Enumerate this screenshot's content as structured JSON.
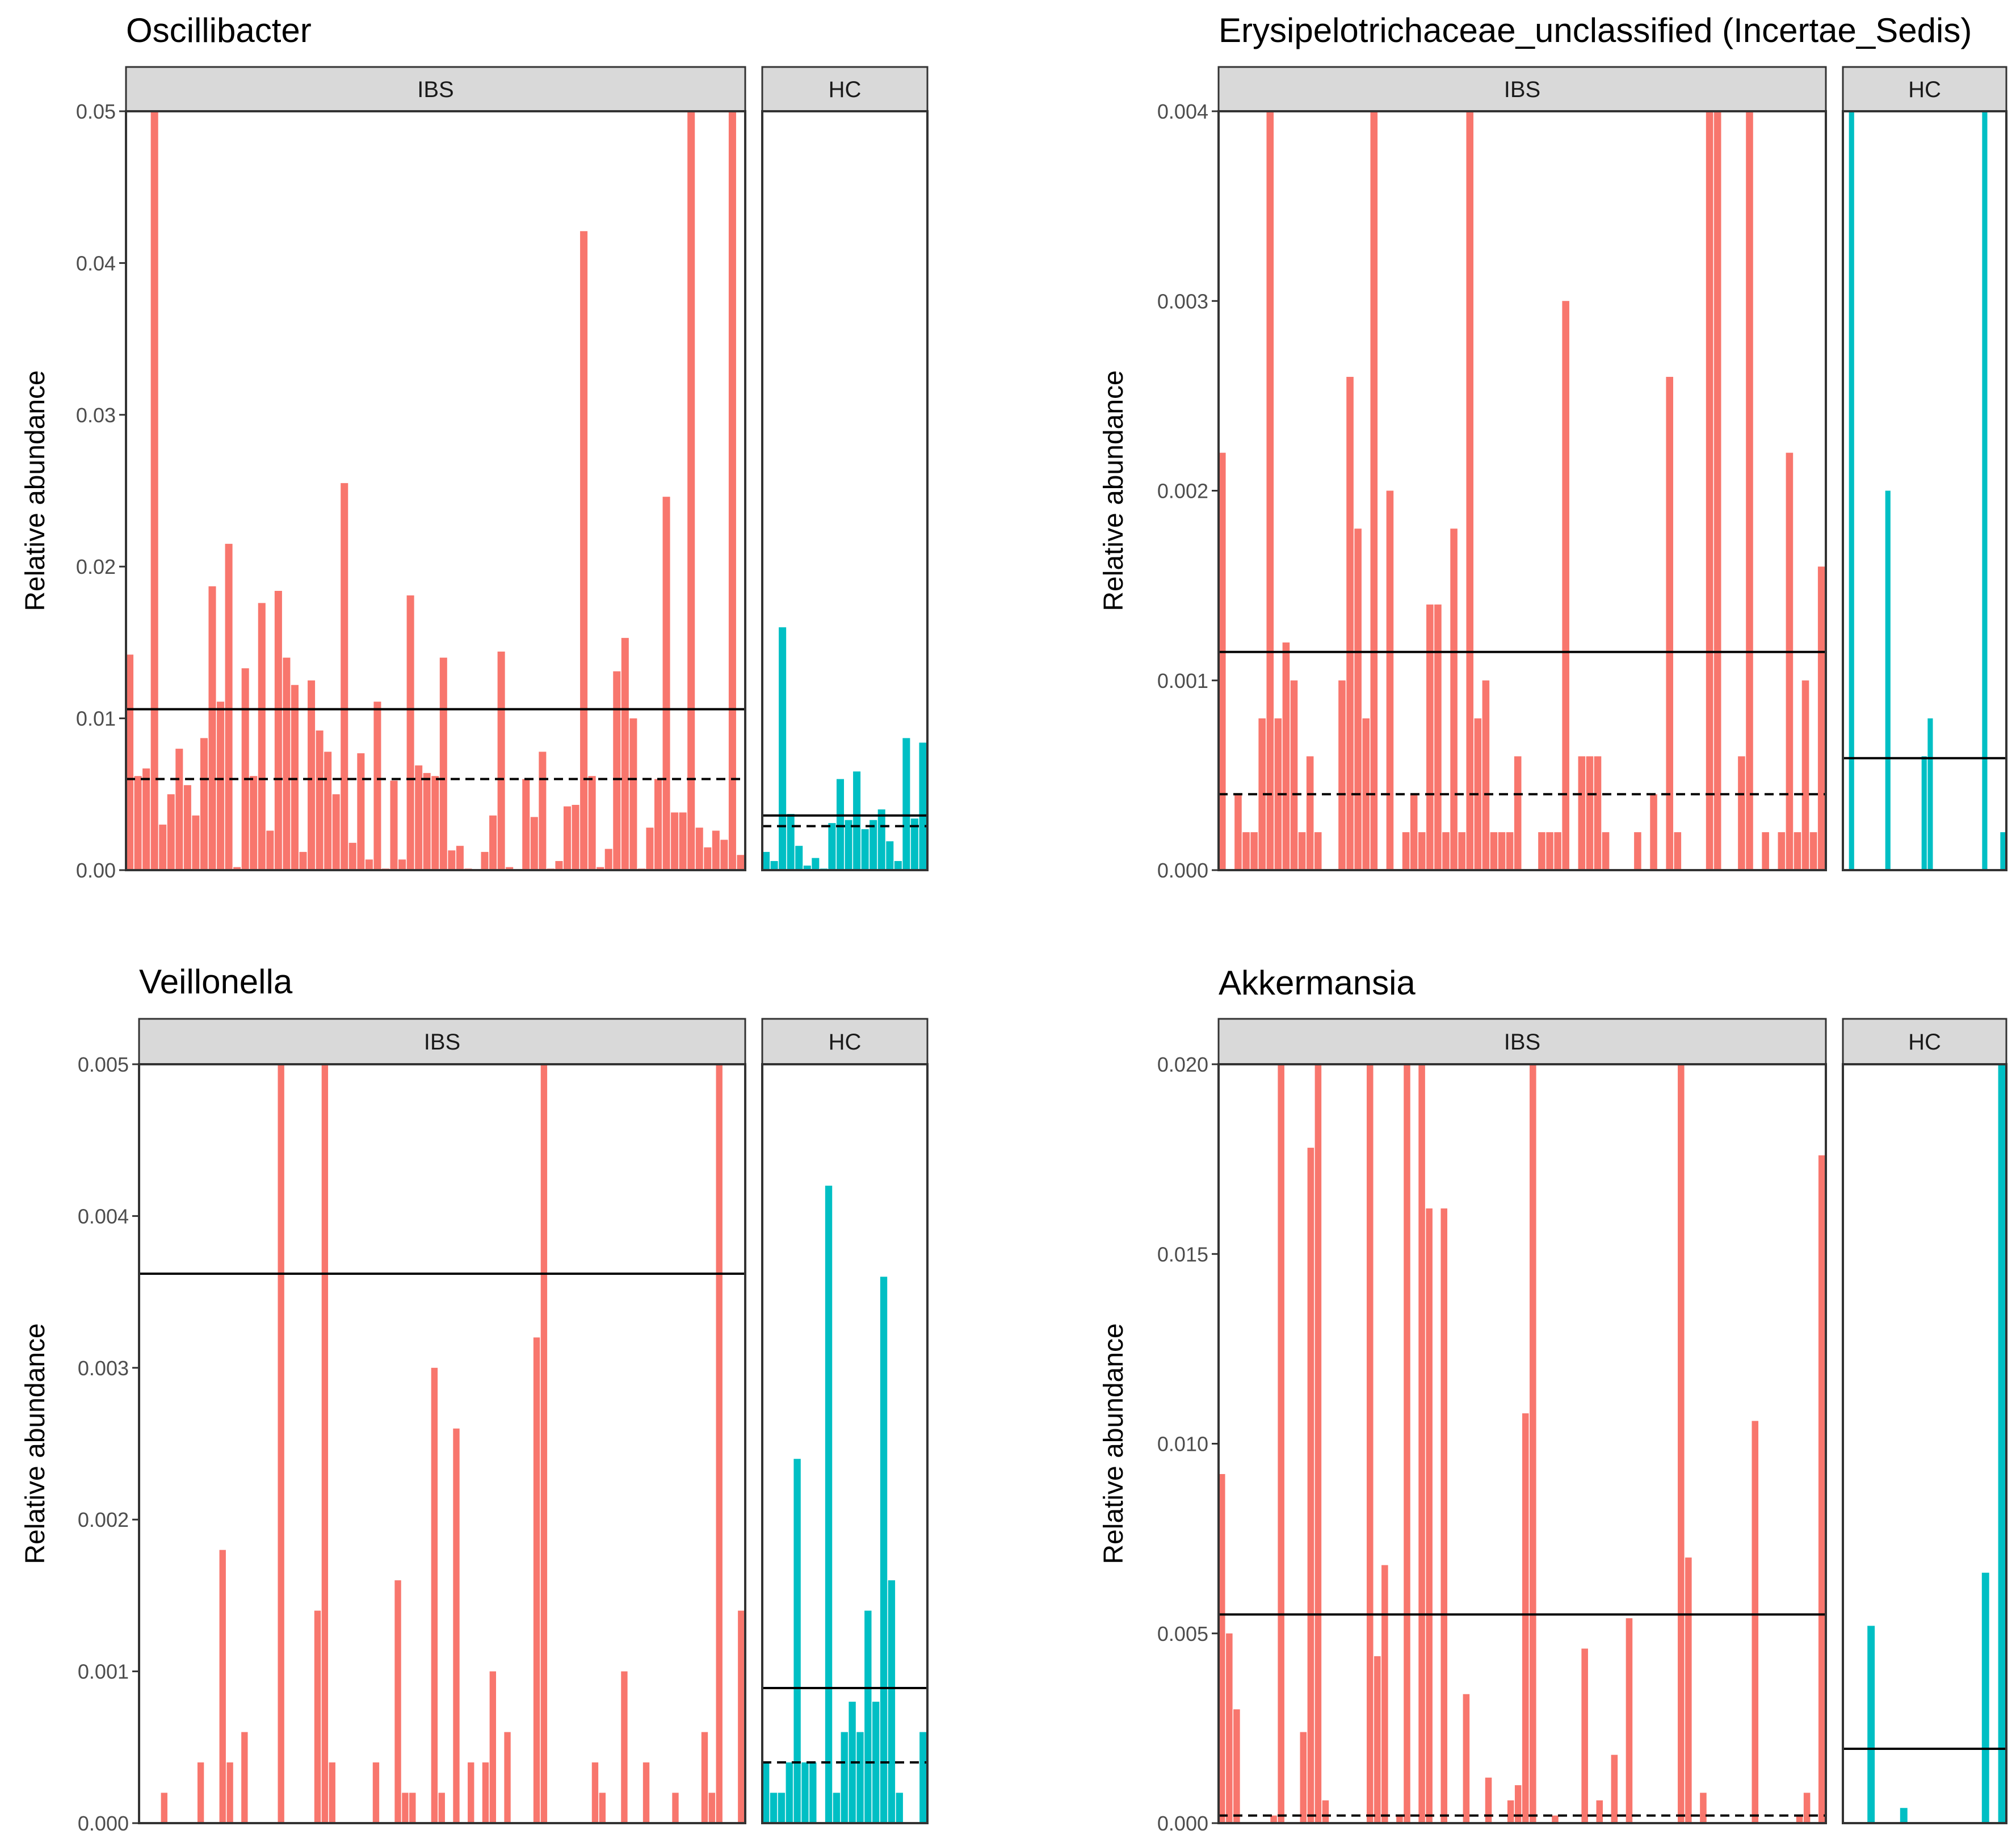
{
  "colors": {
    "ibs": "#F8766D",
    "hc": "#00BFC4",
    "strip": "#D9D9D9",
    "frame": "#333333",
    "line": "#000000"
  },
  "chart_data": [
    {
      "type": "bar",
      "title": "Oscillibacter",
      "ylabel": "Relative abundance",
      "ylim": [
        0,
        0.05
      ],
      "yticks": [
        "0.00",
        "0.01",
        "0.02",
        "0.03",
        "0.04",
        "0.05"
      ],
      "yticks_values": [
        0,
        0.01,
        0.02,
        0.03,
        0.04,
        0.05
      ],
      "series": [
        {
          "name": "IBS",
          "mean": 0.0106,
          "median": 0.006,
          "values": [
            0.0142,
            0.0062,
            0.0067,
            0.05,
            0.003,
            0.005,
            0.008,
            0.0056,
            0.0036,
            0.0087,
            0.0187,
            0.0111,
            0.0215,
            0.0002,
            0.0133,
            0.0062,
            0.0176,
            0.0026,
            0.0184,
            0.014,
            0.0122,
            0.0012,
            0.0125,
            0.0092,
            0.0078,
            0.005,
            0.0255,
            0.0018,
            0.0077,
            0.0007,
            0.0111,
            0.0001,
            0.0059,
            0.0007,
            0.0181,
            0.0069,
            0.0064,
            0.0062,
            0.014,
            0.0013,
            0.0016,
            0.0001,
            0.0,
            0.0012,
            0.0036,
            0.0144,
            0.0002,
            0.0,
            0.006,
            0.0035,
            0.0078,
            0.0001,
            0.0006,
            0.0042,
            0.0043,
            0.0421,
            0.0062,
            0.0002,
            0.0014,
            0.0131,
            0.0153,
            0.01,
            0.0001,
            0.0028,
            0.006,
            0.0246,
            0.0038,
            0.0038,
            0.05,
            0.0028,
            0.0015,
            0.0026,
            0.002,
            0.05,
            0.001
          ]
        },
        {
          "name": "HC",
          "mean": 0.0036,
          "median": 0.0029,
          "values": [
            0.0012,
            0.0006,
            0.016,
            0.0037,
            0.0016,
            0.0003,
            0.0008,
            0.0001,
            0.0031,
            0.006,
            0.0033,
            0.0065,
            0.0027,
            0.0033,
            0.004,
            0.0019,
            0.0006,
            0.0087,
            0.0034,
            0.0084
          ]
        }
      ]
    },
    {
      "type": "bar",
      "title": "Erysipelotrichaceae_unclassified (Incertae_Sedis)",
      "ylabel": "Relative abundance",
      "ylim": [
        0,
        0.004
      ],
      "yticks": [
        "0.000",
        "0.001",
        "0.002",
        "0.003",
        "0.004"
      ],
      "yticks_values": [
        0,
        0.001,
        0.002,
        0.003,
        0.004
      ],
      "series": [
        {
          "name": "IBS",
          "mean": 0.00115,
          "median": 0.0004,
          "values": [
            0.0022,
            0.0,
            0.0004,
            0.0002,
            0.0002,
            0.0008,
            0.004,
            0.0008,
            0.0012,
            0.001,
            0.0002,
            0.0006,
            0.0002,
            0.0,
            0.0,
            0.001,
            0.0026,
            0.0018,
            0.0008,
            0.004,
            0.0,
            0.002,
            0.0,
            0.0002,
            0.0004,
            0.0002,
            0.0014,
            0.0014,
            0.0002,
            0.0018,
            0.0002,
            0.004,
            0.0008,
            0.001,
            0.0002,
            0.0002,
            0.0002,
            0.0006,
            0.0,
            0.0,
            0.0002,
            0.0002,
            0.0002,
            0.003,
            0.0,
            0.0006,
            0.0006,
            0.0006,
            0.0002,
            0.0,
            0.0,
            0.0,
            0.0002,
            0.0,
            0.0004,
            0.0,
            0.0026,
            0.0002,
            0.0,
            0.0,
            0.0,
            0.004,
            0.004,
            0.0,
            0.0,
            0.0006,
            0.004,
            0.0,
            0.0002,
            0.0,
            0.0002,
            0.0022,
            0.0002,
            0.001,
            0.0002,
            0.0016
          ]
        },
        {
          "name": "HC",
          "mean": 0.00059,
          "median": 0.0,
          "values": [
            0.0,
            0.004,
            0.0,
            0.0,
            0.0,
            0.0,
            0.0,
            0.002,
            0.0,
            0.0,
            0.0,
            0.0,
            0.0,
            0.0006,
            0.0008,
            0.0,
            0.0,
            0.0,
            0.0,
            0.0,
            0.0,
            0.0,
            0.0,
            0.004,
            0.0,
            0.0,
            0.0002
          ]
        }
      ]
    },
    {
      "type": "bar",
      "title": "Veillonella",
      "ylabel": "Relative abundance",
      "ylim": [
        0,
        0.005
      ],
      "yticks": [
        "0.000",
        "0.001",
        "0.002",
        "0.003",
        "0.004",
        "0.005"
      ],
      "yticks_values": [
        0,
        0.001,
        0.002,
        0.003,
        0.004,
        0.005
      ],
      "series": [
        {
          "name": "IBS",
          "mean": 0.00362,
          "median": 0.0,
          "values": [
            0.0,
            0.0,
            0.0,
            0.0002,
            0.0,
            0.0,
            0.0,
            0.0,
            0.0004,
            0.0,
            0.0,
            0.0018,
            0.0004,
            0.0,
            0.0006,
            0.0,
            0.0,
            0.0,
            0.0,
            0.005,
            0.0,
            0.0,
            0.0,
            0.0,
            0.0014,
            0.005,
            0.0004,
            0.0,
            0.0,
            0.0,
            0.0,
            0.0,
            0.0004,
            0.0,
            0.0,
            0.0016,
            0.0002,
            0.0002,
            0.0,
            0.0,
            0.003,
            0.0002,
            0.0,
            0.0026,
            0.0,
            0.0004,
            0.0,
            0.0004,
            0.001,
            0.0,
            0.0006,
            0.0,
            0.0,
            0.0,
            0.0032,
            0.005,
            0.0,
            0.0,
            0.0,
            0.0,
            0.0,
            0.0,
            0.0004,
            0.0002,
            0.0,
            0.0,
            0.001,
            0.0,
            0.0,
            0.0004,
            0.0,
            0.0,
            0.0,
            0.0002,
            0.0,
            0.0,
            0.0,
            0.0006,
            0.0002,
            0.005,
            0.0,
            0.0,
            0.0014
          ]
        },
        {
          "name": "HC",
          "mean": 0.00089,
          "median": 0.0004,
          "values": [
            0.0004,
            0.0002,
            0.0002,
            0.0004,
            0.0024,
            0.0004,
            0.0004,
            0.0,
            0.0042,
            0.0002,
            0.0006,
            0.0008,
            0.0006,
            0.0014,
            0.0008,
            0.0036,
            0.0016,
            0.0002,
            0.0,
            0.0,
            0.0006
          ]
        }
      ]
    },
    {
      "type": "bar",
      "title": "Akkermansia",
      "ylabel": "Relative abundance",
      "ylim": [
        0,
        0.02
      ],
      "yticks": [
        "0.000",
        "0.005",
        "0.010",
        "0.015",
        "0.020"
      ],
      "yticks_values": [
        0,
        0.005,
        0.01,
        0.015,
        0.02
      ],
      "series": [
        {
          "name": "IBS",
          "mean": 0.0055,
          "median": 0.0002,
          "values": [
            0.0092,
            0.005,
            0.003,
            0.0,
            0.0,
            0.0,
            0.0,
            0.0002,
            0.02,
            0.0,
            0.0,
            0.0024,
            0.0178,
            0.02,
            0.0006,
            0.0,
            0.0,
            0.0,
            0.0,
            0.0,
            0.02,
            0.0044,
            0.0068,
            0.0,
            0.0002,
            0.02,
            0.0,
            0.02,
            0.0162,
            0.0,
            0.0162,
            0.0,
            0.0,
            0.0034,
            0.0,
            0.0,
            0.0012,
            0.0,
            0.0,
            0.0006,
            0.001,
            0.0108,
            0.02,
            0.0,
            0.0,
            0.0002,
            0.0,
            0.0,
            0.0,
            0.0046,
            0.0,
            0.0006,
            0.0,
            0.0018,
            0.0,
            0.0054,
            0.0,
            0.0,
            0.0,
            0.0,
            0.0,
            0.0,
            0.02,
            0.007,
            0.0,
            0.0008,
            0.0,
            0.0,
            0.0,
            0.0,
            0.0,
            0.0,
            0.0106,
            0.0,
            0.0,
            0.0,
            0.0,
            0.0,
            0.0002,
            0.0008,
            0.0,
            0.0176
          ]
        },
        {
          "name": "HC",
          "mean": 0.00196,
          "median": 0.0,
          "values": [
            0.0,
            0.0,
            0.0,
            0.0052,
            0.0,
            0.0,
            0.0,
            0.0004,
            0.0,
            0.0,
            0.0,
            0.0,
            0.0,
            0.0,
            0.0,
            0.0,
            0.0,
            0.0066,
            0.0,
            0.02
          ]
        }
      ]
    }
  ]
}
